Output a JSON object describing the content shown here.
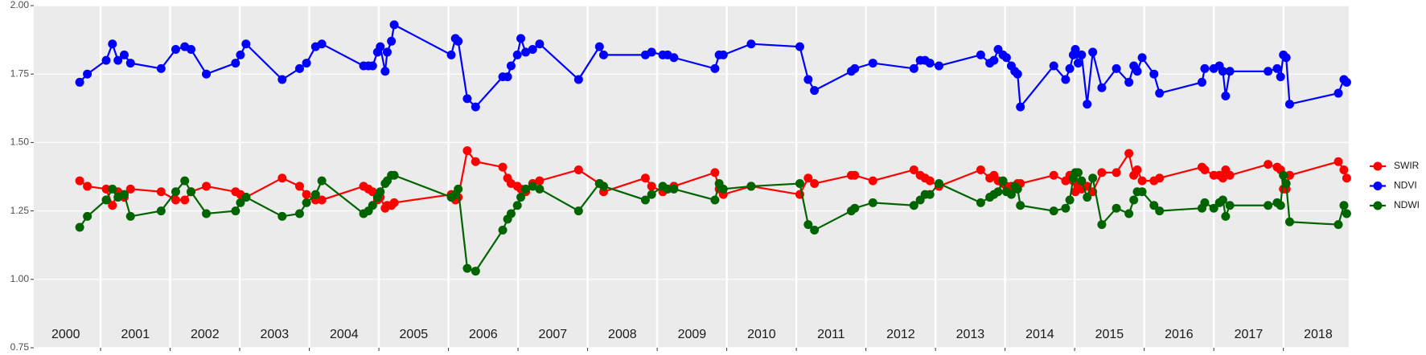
{
  "chart_data": {
    "type": "line",
    "x": [
      2000.7,
      2000.81,
      2001.08,
      2001.17,
      2001.25,
      2001.34,
      2001.43,
      2001.87,
      2002.08,
      2002.21,
      2002.3,
      2002.52,
      2002.94,
      2003.01,
      2003.09,
      2003.61,
      2003.86,
      2003.96,
      2004.09,
      2004.18,
      2004.78,
      2004.85,
      2004.91,
      2004.98,
      2005.02,
      2005.09,
      2005.12,
      2005.18,
      2005.22,
      2006.04,
      2006.1,
      2006.14,
      2006.27,
      2006.39,
      2006.78,
      2006.85,
      2006.9,
      2006.99,
      2007.04,
      2007.11,
      2007.21,
      2007.31,
      2007.87,
      2008.17,
      2008.23,
      2008.83,
      2008.92,
      2009.08,
      2009.15,
      2009.24,
      2009.83,
      2009.89,
      2009.95,
      2010.35,
      2011.05,
      2011.17,
      2011.26,
      2011.79,
      2011.84,
      2012.1,
      2012.69,
      2012.78,
      2012.85,
      2012.92,
      2013.05,
      2013.65,
      2013.78,
      2013.84,
      2013.9,
      2013.97,
      2014.02,
      2014.09,
      2014.14,
      2014.18,
      2014.22,
      2014.7,
      2014.87,
      2014.93,
      2014.98,
      2015.01,
      2015.05,
      2015.1,
      2015.18,
      2015.26,
      2015.39,
      2015.6,
      2015.78,
      2015.85,
      2015.9,
      2015.97,
      2016.14,
      2016.22,
      2016.83,
      2016.87,
      2017.0,
      2017.08,
      2017.13,
      2017.17,
      2017.23,
      2017.78,
      2017.91,
      2017.96,
      2018.0,
      2018.04,
      2018.09,
      2018.79,
      2018.87,
      2018.91
    ],
    "series": [
      {
        "name": "SWIR",
        "color": "#ff0000",
        "values": [
          1.36,
          1.34,
          1.33,
          1.27,
          1.32,
          1.3,
          1.33,
          1.32,
          1.29,
          1.29,
          1.32,
          1.34,
          1.32,
          1.31,
          1.3,
          1.37,
          1.34,
          1.31,
          1.29,
          1.29,
          1.34,
          1.33,
          1.32,
          1.29,
          1.3,
          1.26,
          1.27,
          1.27,
          1.28,
          1.31,
          1.29,
          1.3,
          1.47,
          1.43,
          1.41,
          1.37,
          1.35,
          1.34,
          1.33,
          1.32,
          1.35,
          1.36,
          1.4,
          1.35,
          1.32,
          1.37,
          1.34,
          1.32,
          1.33,
          1.34,
          1.39,
          1.33,
          1.31,
          1.34,
          1.31,
          1.37,
          1.35,
          1.38,
          1.38,
          1.36,
          1.4,
          1.38,
          1.37,
          1.36,
          1.34,
          1.4,
          1.37,
          1.38,
          1.36,
          1.35,
          1.34,
          1.34,
          1.34,
          1.35,
          1.35,
          1.38,
          1.36,
          1.38,
          1.36,
          1.32,
          1.35,
          1.33,
          1.34,
          1.32,
          1.39,
          1.39,
          1.46,
          1.38,
          1.4,
          1.36,
          1.36,
          1.37,
          1.41,
          1.4,
          1.38,
          1.38,
          1.37,
          1.4,
          1.38,
          1.42,
          1.41,
          1.4,
          1.33,
          1.33,
          1.38,
          1.43,
          1.4,
          1.37
        ]
      },
      {
        "name": "NDVI",
        "color": "#0000ff",
        "values": [
          1.72,
          1.75,
          1.8,
          1.86,
          1.8,
          1.82,
          1.79,
          1.77,
          1.84,
          1.85,
          1.84,
          1.75,
          1.79,
          1.82,
          1.86,
          1.73,
          1.77,
          1.79,
          1.85,
          1.86,
          1.78,
          1.78,
          1.78,
          1.83,
          1.85,
          1.76,
          1.83,
          1.87,
          1.93,
          1.82,
          1.88,
          1.87,
          1.66,
          1.63,
          1.74,
          1.74,
          1.78,
          1.82,
          1.88,
          1.83,
          1.84,
          1.86,
          1.73,
          1.85,
          1.82,
          1.82,
          1.83,
          1.82,
          1.82,
          1.81,
          1.77,
          1.82,
          1.82,
          1.86,
          1.85,
          1.73,
          1.69,
          1.76,
          1.77,
          1.79,
          1.77,
          1.8,
          1.8,
          1.79,
          1.78,
          1.82,
          1.79,
          1.8,
          1.84,
          1.82,
          1.81,
          1.78,
          1.76,
          1.75,
          1.63,
          1.78,
          1.73,
          1.77,
          1.82,
          1.84,
          1.79,
          1.82,
          1.64,
          1.83,
          1.7,
          1.77,
          1.72,
          1.78,
          1.76,
          1.81,
          1.75,
          1.68,
          1.72,
          1.77,
          1.77,
          1.78,
          1.76,
          1.67,
          1.76,
          1.76,
          1.77,
          1.74,
          1.82,
          1.81,
          1.64,
          1.68,
          1.73,
          1.72
        ]
      },
      {
        "name": "NDWI",
        "color": "#006400",
        "values": [
          1.19,
          1.23,
          1.29,
          1.33,
          1.3,
          1.31,
          1.23,
          1.25,
          1.32,
          1.36,
          1.32,
          1.24,
          1.25,
          1.28,
          1.3,
          1.23,
          1.24,
          1.28,
          1.31,
          1.36,
          1.24,
          1.25,
          1.27,
          1.3,
          1.32,
          1.35,
          1.36,
          1.38,
          1.38,
          1.3,
          1.31,
          1.33,
          1.04,
          1.03,
          1.18,
          1.22,
          1.24,
          1.27,
          1.3,
          1.33,
          1.34,
          1.33,
          1.25,
          1.35,
          1.34,
          1.29,
          1.31,
          1.34,
          1.33,
          1.33,
          1.29,
          1.35,
          1.33,
          1.34,
          1.35,
          1.2,
          1.18,
          1.25,
          1.26,
          1.28,
          1.27,
          1.29,
          1.31,
          1.31,
          1.35,
          1.28,
          1.3,
          1.31,
          1.32,
          1.36,
          1.32,
          1.31,
          1.34,
          1.33,
          1.27,
          1.25,
          1.26,
          1.29,
          1.37,
          1.39,
          1.39,
          1.36,
          1.3,
          1.37,
          1.2,
          1.26,
          1.24,
          1.29,
          1.32,
          1.32,
          1.27,
          1.25,
          1.26,
          1.28,
          1.26,
          1.28,
          1.29,
          1.23,
          1.27,
          1.27,
          1.28,
          1.27,
          1.38,
          1.35,
          1.21,
          1.2,
          1.27,
          1.24
        ]
      }
    ],
    "xlim": [
      2000.04,
      2018.94
    ],
    "xticks": [
      2001,
      2002,
      2003,
      2004,
      2005,
      2006,
      2007,
      2008,
      2009,
      2010,
      2011,
      2012,
      2013,
      2014,
      2015,
      2016,
      2017,
      2018
    ],
    "period_labels": [
      {
        "value": 2000.5,
        "label": "2000"
      },
      {
        "value": 2001.5,
        "label": "2001"
      },
      {
        "value": 2002.5,
        "label": "2002"
      },
      {
        "value": 2003.5,
        "label": "2003"
      },
      {
        "value": 2004.5,
        "label": "2004"
      },
      {
        "value": 2005.5,
        "label": "2005"
      },
      {
        "value": 2006.5,
        "label": "2006"
      },
      {
        "value": 2007.5,
        "label": "2007"
      },
      {
        "value": 2008.5,
        "label": "2008"
      },
      {
        "value": 2009.5,
        "label": "2009"
      },
      {
        "value": 2010.5,
        "label": "2010"
      },
      {
        "value": 2011.5,
        "label": "2011"
      },
      {
        "value": 2012.5,
        "label": "2012"
      },
      {
        "value": 2013.5,
        "label": "2013"
      },
      {
        "value": 2014.5,
        "label": "2014"
      },
      {
        "value": 2015.5,
        "label": "2015"
      },
      {
        "value": 2016.5,
        "label": "2016"
      },
      {
        "value": 2017.5,
        "label": "2017"
      },
      {
        "value": 2018.5,
        "label": "2018"
      }
    ],
    "ylim": [
      0.75,
      2.0
    ],
    "yticks": [
      {
        "value": 0.75,
        "label": "0.75"
      },
      {
        "value": 1.0,
        "label": "1.00"
      },
      {
        "value": 1.25,
        "label": "1.25"
      },
      {
        "value": 1.5,
        "label": "1.50"
      },
      {
        "value": 1.75,
        "label": "1.75"
      },
      {
        "value": 2.0,
        "label": "2.00"
      }
    ],
    "grid": true,
    "legend": "right"
  }
}
